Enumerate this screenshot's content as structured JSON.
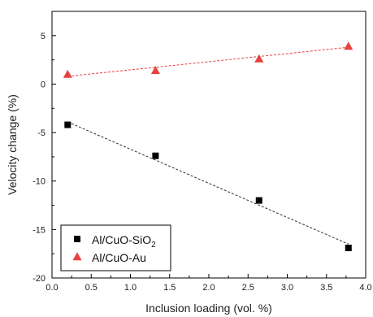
{
  "chart_data": {
    "type": "scatter",
    "title": "",
    "xlabel": "Inclusion loading (vol. %)",
    "ylabel": "Velocity change (%)",
    "xlim": [
      0.0,
      4.0
    ],
    "ylim": [
      -20,
      7.5
    ],
    "xticks": [
      0.0,
      0.5,
      1.0,
      1.5,
      2.0,
      2.5,
      3.0,
      3.5,
      4.0
    ],
    "xtick_labels": [
      "0.0",
      "0.5",
      "1.0",
      "1.5",
      "2.0",
      "2.5",
      "3.0",
      "3.5",
      "4.0"
    ],
    "yticks": [
      -20,
      -15,
      -10,
      -5,
      0,
      5
    ],
    "ytick_labels": [
      "-20",
      "-15",
      "-10",
      "-5",
      "0",
      "5"
    ],
    "grid": false,
    "legend_position": "bottom-left",
    "series": [
      {
        "name": "Al/CuO-SiO2",
        "legend_label": "Al/CuO-SiO",
        "legend_subscript": "2",
        "marker": "square",
        "color": "#000000",
        "x": [
          0.2,
          1.32,
          2.64,
          3.78
        ],
        "y": [
          -4.2,
          -7.4,
          -12.0,
          -16.9
        ],
        "fit_line": {
          "x": [
            0.2,
            3.78
          ],
          "y": [
            -3.9,
            -16.5
          ],
          "style": "dashed",
          "color": "#333333"
        }
      },
      {
        "name": "Al/CuO-Au",
        "legend_label": "Al/CuO-Au",
        "legend_subscript": "",
        "marker": "triangle",
        "color": "#e8413f",
        "x": [
          0.2,
          1.32,
          2.64,
          3.78
        ],
        "y": [
          1.0,
          1.4,
          2.6,
          3.9
        ],
        "fit_line": {
          "x": [
            0.2,
            3.78
          ],
          "y": [
            0.8,
            3.8
          ],
          "style": "dashed",
          "color": "#e8413f"
        }
      }
    ]
  }
}
